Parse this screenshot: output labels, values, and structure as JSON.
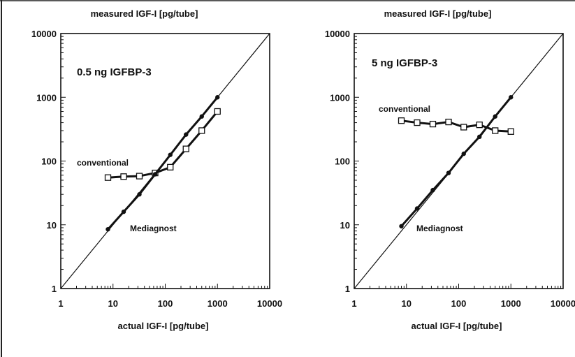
{
  "chart_data": [
    {
      "type": "line",
      "title": "0.5 ng IGFBP-3",
      "xlabel": "actual IGF-I [pg/tube]",
      "ylabel": "measured IGF-I [pg/tube]",
      "xscale": "log",
      "yscale": "log",
      "xlim": [
        1,
        10000
      ],
      "ylim": [
        1,
        10000
      ],
      "x_tick_labels": [
        "1",
        "10",
        "100",
        "1000",
        "10000"
      ],
      "y_tick_labels": [
        "1",
        "10",
        "100",
        "1000",
        "10000"
      ],
      "identity_line": true,
      "series": [
        {
          "name": "conventional",
          "marker": "square",
          "x": [
            8,
            16,
            32,
            64,
            125,
            250,
            500,
            1000
          ],
          "y": [
            55,
            57,
            58,
            65,
            80,
            155,
            300,
            600
          ]
        },
        {
          "name": "Mediagnost",
          "marker": "dot",
          "x": [
            8,
            16,
            32,
            64,
            125,
            250,
            500,
            1000
          ],
          "y": [
            8.5,
            16,
            30,
            62,
            125,
            260,
            500,
            1000
          ]
        }
      ]
    },
    {
      "type": "line",
      "title": "5 ng IGFBP-3",
      "xlabel": "actual IGF-I [pg/tube]",
      "ylabel": "measured IGF-I [pg/tube]",
      "xscale": "log",
      "yscale": "log",
      "xlim": [
        1,
        10000
      ],
      "ylim": [
        1,
        10000
      ],
      "x_tick_labels": [
        "1",
        "10",
        "100",
        "1000",
        "10000"
      ],
      "y_tick_labels": [
        "1",
        "10",
        "100",
        "1000",
        "10000"
      ],
      "identity_line": true,
      "series": [
        {
          "name": "conventional",
          "marker": "square",
          "x": [
            8,
            16,
            32,
            64,
            125,
            250,
            500,
            1000
          ],
          "y": [
            430,
            400,
            380,
            410,
            340,
            370,
            300,
            290
          ]
        },
        {
          "name": "Mediagnost",
          "marker": "dot",
          "x": [
            8,
            16,
            32,
            64,
            125,
            250,
            500,
            1000
          ],
          "y": [
            9.5,
            18,
            35,
            65,
            130,
            240,
            500,
            1000
          ]
        }
      ]
    }
  ]
}
